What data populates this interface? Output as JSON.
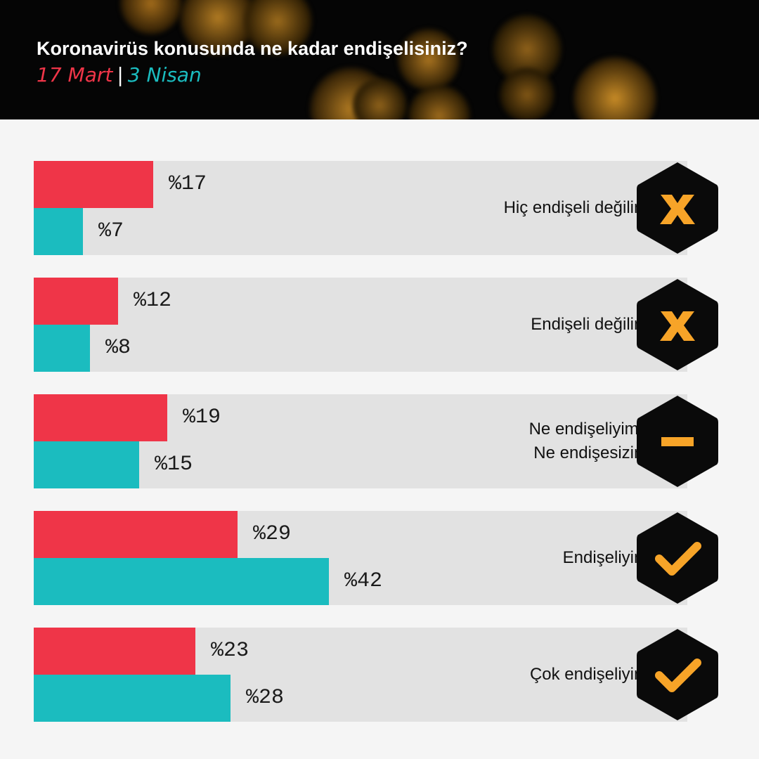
{
  "header": {
    "title": "Koronavirüs konusunda ne kadar endişelisiniz?",
    "legend": {
      "series1": "17 Mart",
      "separator": "|",
      "series2": "3 Nisan"
    }
  },
  "colors": {
    "series1": "#ef3548",
    "series2": "#1bbcbf",
    "icon": "#f7a428",
    "hex": "#0a0a0a",
    "track": "#e2e2e2"
  },
  "chart_data": {
    "type": "bar",
    "orientation": "horizontal",
    "title": "Koronavirüs konusunda ne kadar endişelisiniz?",
    "categories": [
      "Hiç endişeli değilim",
      "Endişeli değilim",
      "Ne endişeliyim /\nNe endişesizim",
      "Endişeliyim",
      "Çok endişeliyim"
    ],
    "series": [
      {
        "name": "17 Mart",
        "values": [
          17,
          12,
          19,
          29,
          23
        ],
        "labels": [
          "%17",
          "%12",
          "%19",
          "%29",
          "%23"
        ]
      },
      {
        "name": "3 Nisan",
        "values": [
          7,
          8,
          15,
          42,
          28
        ],
        "labels": [
          "%7",
          "%8",
          "%15",
          "%42",
          "%28"
        ]
      }
    ],
    "icons": [
      "x-icon",
      "x-icon",
      "minus-icon",
      "check-icon",
      "check-icon"
    ],
    "xlim": [
      0,
      100
    ],
    "grid": false,
    "legend": "top-left"
  }
}
